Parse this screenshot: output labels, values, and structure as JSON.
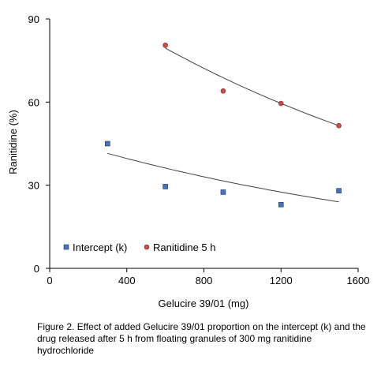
{
  "chart_data": {
    "type": "scatter",
    "xlabel": "Gelucire 39/01 (mg)",
    "ylabel": "Ranitidine (%)",
    "xlim": [
      0,
      1600
    ],
    "ylim": [
      0,
      90
    ],
    "xticks": [
      "0",
      "400",
      "800",
      "1200",
      "1600"
    ],
    "yticks": [
      "0",
      "30",
      "60",
      "90"
    ],
    "grid": false,
    "legend": "bottom-left",
    "series": [
      {
        "name": "Intercept (k)",
        "marker": "square",
        "color": "#4a72b8",
        "x": [
          300,
          600,
          900,
          1200,
          1500
        ],
        "y": [
          45,
          29.5,
          27.5,
          23,
          28
        ],
        "trend": {
          "x": [
            300,
            1500
          ],
          "y0": 41.5,
          "y1": 24.0
        }
      },
      {
        "name": "Ranitidine 5 h",
        "marker": "circle",
        "color": "#c0504d",
        "x": [
          600,
          900,
          1200,
          1500
        ],
        "y": [
          80.5,
          64,
          59.5,
          51.5
        ],
        "trend": {
          "x": [
            600,
            1500
          ],
          "y0": 79.5,
          "y1": 51.5
        }
      }
    ]
  },
  "caption": "Figure 2. Effect of added Gelucire 39/01 proportion on the intercept (k) and the drug released after 5 h from floating granules of 300 mg ranitidine hydrochloride"
}
